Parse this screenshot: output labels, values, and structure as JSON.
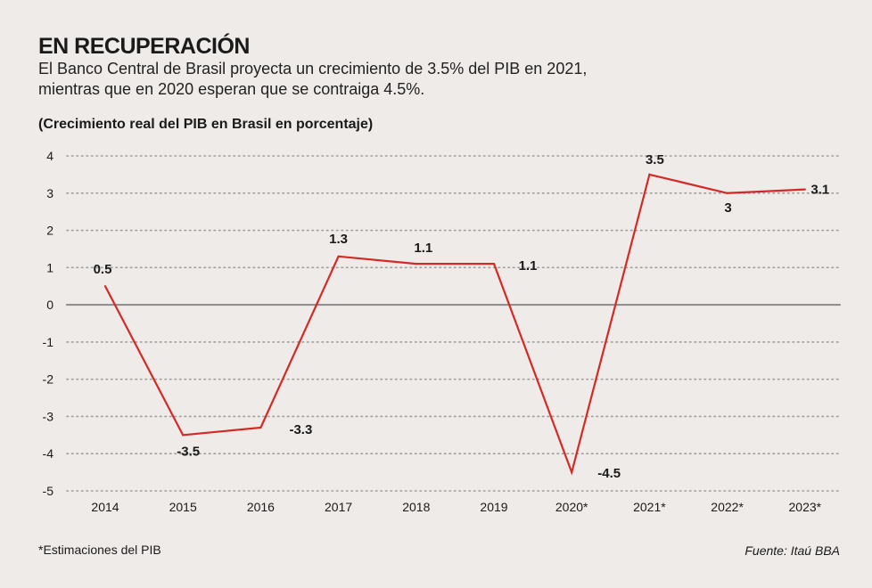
{
  "header": {
    "title": "EN RECUPERACIÓN",
    "subtitle_line1": "El Banco Central de Brasil proyecta un crecimiento de 3.5% del PIB en 2021,",
    "subtitle_line2": "mientras que en 2020 esperan que se contraiga 4.5%."
  },
  "footer": {
    "footnote": "*Estimaciones del PIB",
    "source": "Fuente: Itaú BBA"
  },
  "colors": {
    "line": "#d42a25",
    "grid": "#9e9e9e",
    "zero": "#8a8a8a",
    "text": "#1a1a1a",
    "background": "#efebe9"
  },
  "chart_data": {
    "type": "line",
    "title": "EN RECUPERACIÓN",
    "ylabel": "(Crecimiento real del PIB en Brasil en porcentaje)",
    "xlabel": "",
    "categories": [
      "2014",
      "2015",
      "2016",
      "2017",
      "2018",
      "2019",
      "2020*",
      "2021*",
      "2022*",
      "2023*"
    ],
    "series": [
      {
        "values": [
          0.5,
          -3.5,
          -3.3,
          1.3,
          1.1,
          1.1,
          -4.5,
          3.5,
          3,
          3.1
        ],
        "labels": [
          "0.5",
          "-3.5",
          "-3.3",
          "1.3",
          "1.1",
          "1.1",
          "-4.5",
          "3.5",
          "3",
          "3.1"
        ]
      }
    ],
    "y_ticks": [
      "4",
      "3",
      "2",
      "1",
      "0",
      "-1",
      "-2",
      "-3",
      "-4",
      "-5"
    ],
    "y_tick_values": [
      4,
      3,
      2,
      1,
      0,
      -1,
      -2,
      -3,
      -4,
      -5
    ],
    "ylim": [
      -5,
      4
    ],
    "grid": "dotted horizontal",
    "legend": "none"
  }
}
